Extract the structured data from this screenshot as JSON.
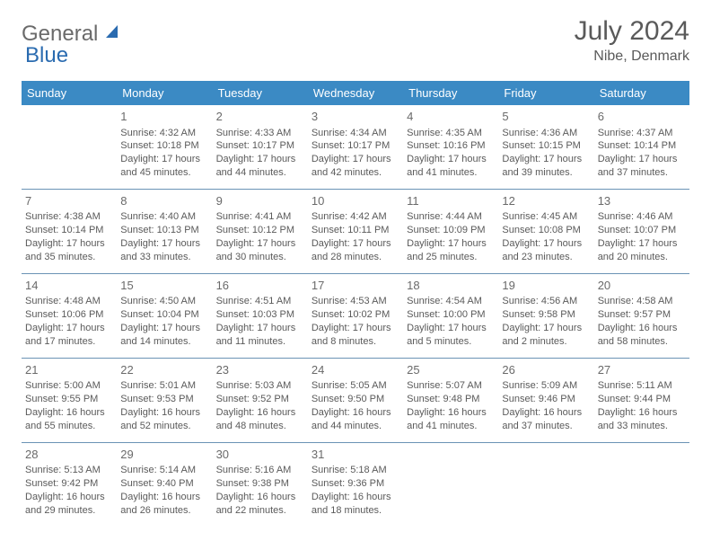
{
  "logo": {
    "word1": "General",
    "word2": "Blue"
  },
  "header": {
    "month_title": "July 2024",
    "location": "Nibe, Denmark"
  },
  "colors": {
    "header_bg": "#3b8ac4",
    "header_text": "#ffffff",
    "row_divider": "#6b93b5",
    "logo_accent": "#2a6bb0",
    "text": "#5a5a5a",
    "background": "#ffffff"
  },
  "weekdays": [
    "Sunday",
    "Monday",
    "Tuesday",
    "Wednesday",
    "Thursday",
    "Friday",
    "Saturday"
  ],
  "weeks": [
    [
      null,
      {
        "day": "1",
        "sunrise": "Sunrise: 4:32 AM",
        "sunset": "Sunset: 10:18 PM",
        "daylight1": "Daylight: 17 hours",
        "daylight2": "and 45 minutes."
      },
      {
        "day": "2",
        "sunrise": "Sunrise: 4:33 AM",
        "sunset": "Sunset: 10:17 PM",
        "daylight1": "Daylight: 17 hours",
        "daylight2": "and 44 minutes."
      },
      {
        "day": "3",
        "sunrise": "Sunrise: 4:34 AM",
        "sunset": "Sunset: 10:17 PM",
        "daylight1": "Daylight: 17 hours",
        "daylight2": "and 42 minutes."
      },
      {
        "day": "4",
        "sunrise": "Sunrise: 4:35 AM",
        "sunset": "Sunset: 10:16 PM",
        "daylight1": "Daylight: 17 hours",
        "daylight2": "and 41 minutes."
      },
      {
        "day": "5",
        "sunrise": "Sunrise: 4:36 AM",
        "sunset": "Sunset: 10:15 PM",
        "daylight1": "Daylight: 17 hours",
        "daylight2": "and 39 minutes."
      },
      {
        "day": "6",
        "sunrise": "Sunrise: 4:37 AM",
        "sunset": "Sunset: 10:14 PM",
        "daylight1": "Daylight: 17 hours",
        "daylight2": "and 37 minutes."
      }
    ],
    [
      {
        "day": "7",
        "sunrise": "Sunrise: 4:38 AM",
        "sunset": "Sunset: 10:14 PM",
        "daylight1": "Daylight: 17 hours",
        "daylight2": "and 35 minutes."
      },
      {
        "day": "8",
        "sunrise": "Sunrise: 4:40 AM",
        "sunset": "Sunset: 10:13 PM",
        "daylight1": "Daylight: 17 hours",
        "daylight2": "and 33 minutes."
      },
      {
        "day": "9",
        "sunrise": "Sunrise: 4:41 AM",
        "sunset": "Sunset: 10:12 PM",
        "daylight1": "Daylight: 17 hours",
        "daylight2": "and 30 minutes."
      },
      {
        "day": "10",
        "sunrise": "Sunrise: 4:42 AM",
        "sunset": "Sunset: 10:11 PM",
        "daylight1": "Daylight: 17 hours",
        "daylight2": "and 28 minutes."
      },
      {
        "day": "11",
        "sunrise": "Sunrise: 4:44 AM",
        "sunset": "Sunset: 10:09 PM",
        "daylight1": "Daylight: 17 hours",
        "daylight2": "and 25 minutes."
      },
      {
        "day": "12",
        "sunrise": "Sunrise: 4:45 AM",
        "sunset": "Sunset: 10:08 PM",
        "daylight1": "Daylight: 17 hours",
        "daylight2": "and 23 minutes."
      },
      {
        "day": "13",
        "sunrise": "Sunrise: 4:46 AM",
        "sunset": "Sunset: 10:07 PM",
        "daylight1": "Daylight: 17 hours",
        "daylight2": "and 20 minutes."
      }
    ],
    [
      {
        "day": "14",
        "sunrise": "Sunrise: 4:48 AM",
        "sunset": "Sunset: 10:06 PM",
        "daylight1": "Daylight: 17 hours",
        "daylight2": "and 17 minutes."
      },
      {
        "day": "15",
        "sunrise": "Sunrise: 4:50 AM",
        "sunset": "Sunset: 10:04 PM",
        "daylight1": "Daylight: 17 hours",
        "daylight2": "and 14 minutes."
      },
      {
        "day": "16",
        "sunrise": "Sunrise: 4:51 AM",
        "sunset": "Sunset: 10:03 PM",
        "daylight1": "Daylight: 17 hours",
        "daylight2": "and 11 minutes."
      },
      {
        "day": "17",
        "sunrise": "Sunrise: 4:53 AM",
        "sunset": "Sunset: 10:02 PM",
        "daylight1": "Daylight: 17 hours",
        "daylight2": "and 8 minutes."
      },
      {
        "day": "18",
        "sunrise": "Sunrise: 4:54 AM",
        "sunset": "Sunset: 10:00 PM",
        "daylight1": "Daylight: 17 hours",
        "daylight2": "and 5 minutes."
      },
      {
        "day": "19",
        "sunrise": "Sunrise: 4:56 AM",
        "sunset": "Sunset: 9:58 PM",
        "daylight1": "Daylight: 17 hours",
        "daylight2": "and 2 minutes."
      },
      {
        "day": "20",
        "sunrise": "Sunrise: 4:58 AM",
        "sunset": "Sunset: 9:57 PM",
        "daylight1": "Daylight: 16 hours",
        "daylight2": "and 58 minutes."
      }
    ],
    [
      {
        "day": "21",
        "sunrise": "Sunrise: 5:00 AM",
        "sunset": "Sunset: 9:55 PM",
        "daylight1": "Daylight: 16 hours",
        "daylight2": "and 55 minutes."
      },
      {
        "day": "22",
        "sunrise": "Sunrise: 5:01 AM",
        "sunset": "Sunset: 9:53 PM",
        "daylight1": "Daylight: 16 hours",
        "daylight2": "and 52 minutes."
      },
      {
        "day": "23",
        "sunrise": "Sunrise: 5:03 AM",
        "sunset": "Sunset: 9:52 PM",
        "daylight1": "Daylight: 16 hours",
        "daylight2": "and 48 minutes."
      },
      {
        "day": "24",
        "sunrise": "Sunrise: 5:05 AM",
        "sunset": "Sunset: 9:50 PM",
        "daylight1": "Daylight: 16 hours",
        "daylight2": "and 44 minutes."
      },
      {
        "day": "25",
        "sunrise": "Sunrise: 5:07 AM",
        "sunset": "Sunset: 9:48 PM",
        "daylight1": "Daylight: 16 hours",
        "daylight2": "and 41 minutes."
      },
      {
        "day": "26",
        "sunrise": "Sunrise: 5:09 AM",
        "sunset": "Sunset: 9:46 PM",
        "daylight1": "Daylight: 16 hours",
        "daylight2": "and 37 minutes."
      },
      {
        "day": "27",
        "sunrise": "Sunrise: 5:11 AM",
        "sunset": "Sunset: 9:44 PM",
        "daylight1": "Daylight: 16 hours",
        "daylight2": "and 33 minutes."
      }
    ],
    [
      {
        "day": "28",
        "sunrise": "Sunrise: 5:13 AM",
        "sunset": "Sunset: 9:42 PM",
        "daylight1": "Daylight: 16 hours",
        "daylight2": "and 29 minutes."
      },
      {
        "day": "29",
        "sunrise": "Sunrise: 5:14 AM",
        "sunset": "Sunset: 9:40 PM",
        "daylight1": "Daylight: 16 hours",
        "daylight2": "and 26 minutes."
      },
      {
        "day": "30",
        "sunrise": "Sunrise: 5:16 AM",
        "sunset": "Sunset: 9:38 PM",
        "daylight1": "Daylight: 16 hours",
        "daylight2": "and 22 minutes."
      },
      {
        "day": "31",
        "sunrise": "Sunrise: 5:18 AM",
        "sunset": "Sunset: 9:36 PM",
        "daylight1": "Daylight: 16 hours",
        "daylight2": "and 18 minutes."
      },
      null,
      null,
      null
    ]
  ]
}
